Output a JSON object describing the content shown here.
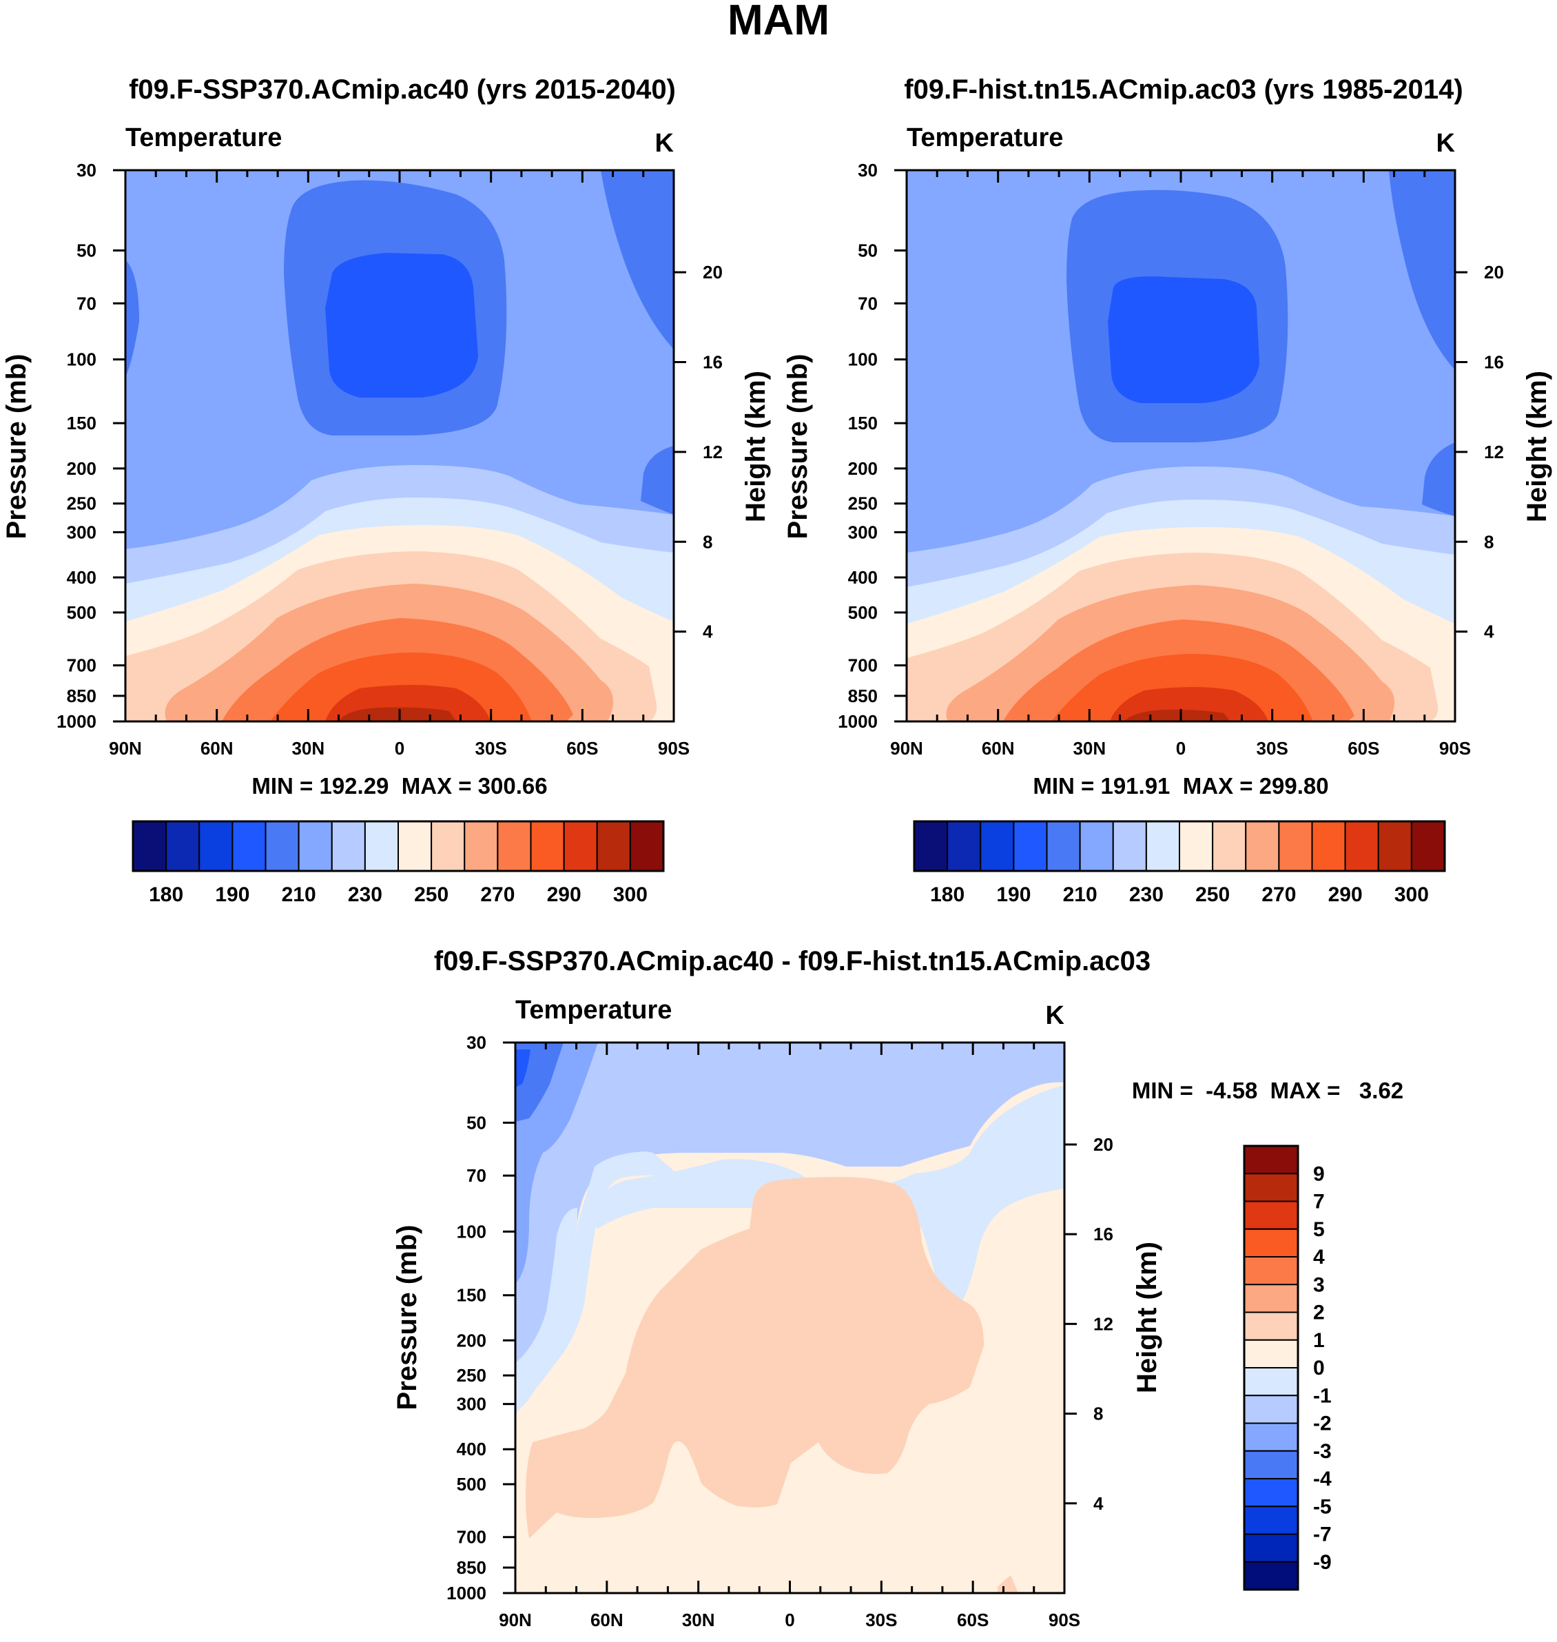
{
  "figure_title": "MAM",
  "chart_data": [
    {
      "type": "heatmap",
      "title": "f09.F-SSP370.ACmip.ac40 (yrs 2015-2040)",
      "variable": "Temperature",
      "units": "K",
      "xlabel": "",
      "ylabel": "Pressure (mb)",
      "ylabel_right": "Height (km)",
      "x_ticks": [
        "90N",
        "60N",
        "30N",
        "0",
        "30S",
        "60S",
        "90S"
      ],
      "y_ticks": [
        30,
        50,
        70,
        100,
        150,
        200,
        250,
        300,
        400,
        500,
        700,
        850,
        1000
      ],
      "y_ticks_right": [
        20,
        16,
        12,
        8,
        4
      ],
      "ylim": [
        1000,
        30
      ],
      "min_label": "MIN = 192.29  MAX = 300.66",
      "min": 192.29,
      "max": 300.66,
      "levels": [
        180,
        185,
        190,
        200,
        210,
        220,
        230,
        240,
        250,
        260,
        270,
        280,
        290,
        295,
        300
      ],
      "colorbar_labels": [
        "180",
        "190",
        "210",
        "230",
        "250",
        "270",
        "290",
        "300"
      ],
      "colorbar_orientation": "horizontal"
    },
    {
      "type": "heatmap",
      "title": "f09.F-hist.tn15.ACmip.ac03 (yrs 1985-2014)",
      "variable": "Temperature",
      "units": "K",
      "xlabel": "",
      "ylabel": "Pressure (mb)",
      "ylabel_right": "Height (km)",
      "x_ticks": [
        "90N",
        "60N",
        "30N",
        "0",
        "30S",
        "60S",
        "90S"
      ],
      "y_ticks": [
        30,
        50,
        70,
        100,
        150,
        200,
        250,
        300,
        400,
        500,
        700,
        850,
        1000
      ],
      "y_ticks_right": [
        20,
        16,
        12,
        8,
        4
      ],
      "ylim": [
        1000,
        30
      ],
      "min_label": "MIN = 191.91  MAX = 299.80",
      "min": 191.91,
      "max": 299.8,
      "levels": [
        180,
        185,
        190,
        200,
        210,
        220,
        230,
        240,
        250,
        260,
        270,
        280,
        290,
        295,
        300
      ],
      "colorbar_labels": [
        "180",
        "190",
        "210",
        "230",
        "250",
        "270",
        "290",
        "300"
      ],
      "colorbar_orientation": "horizontal"
    },
    {
      "type": "heatmap",
      "title": "f09.F-SSP370.ACmip.ac40 - f09.F-hist.tn15.ACmip.ac03",
      "variable": "Temperature",
      "units": "K",
      "xlabel": "",
      "ylabel": "Pressure (mb)",
      "ylabel_right": "Height (km)",
      "x_ticks": [
        "90N",
        "60N",
        "30N",
        "0",
        "30S",
        "60S",
        "90S"
      ],
      "y_ticks": [
        30,
        50,
        70,
        100,
        150,
        200,
        250,
        300,
        400,
        500,
        700,
        850,
        1000
      ],
      "y_ticks_right": [
        20,
        16,
        12,
        8,
        4
      ],
      "ylim": [
        1000,
        30
      ],
      "min_label": "MIN =  -4.58  MAX =   3.62",
      "min": -4.58,
      "max": 3.62,
      "levels": [
        -9,
        -7,
        -5,
        -4,
        -3,
        -2,
        -1,
        0,
        1,
        2,
        3,
        4,
        5,
        7,
        9
      ],
      "colorbar_labels": [
        "9",
        "7",
        "5",
        "4",
        "3",
        "2",
        "1",
        "0",
        "-1",
        "-2",
        "-3",
        "-4",
        "-5",
        "-7",
        "-9"
      ],
      "colorbar_orientation": "vertical"
    }
  ],
  "colors": {
    "abs_palette": [
      "#0a0f78",
      "#0b29b3",
      "#0a3fe0",
      "#1f58ff",
      "#4a79f5",
      "#84a8ff",
      "#b6cbff",
      "#d7e8ff",
      "#fff0e0",
      "#fdd2b8",
      "#fca882",
      "#fc7a47",
      "#f95b22",
      "#e03812",
      "#b72a0c",
      "#8a0d0a"
    ],
    "diff_palette": [
      "#000d7a",
      "#0026b8",
      "#0a3de0",
      "#1f58ff",
      "#4a79f5",
      "#84a8ff",
      "#b6cbff",
      "#d7e8ff",
      "#fff0e0",
      "#fdd2b8",
      "#fca882",
      "#fc7a47",
      "#f95b22",
      "#e03812",
      "#b72a0c",
      "#8a0d0a"
    ]
  }
}
